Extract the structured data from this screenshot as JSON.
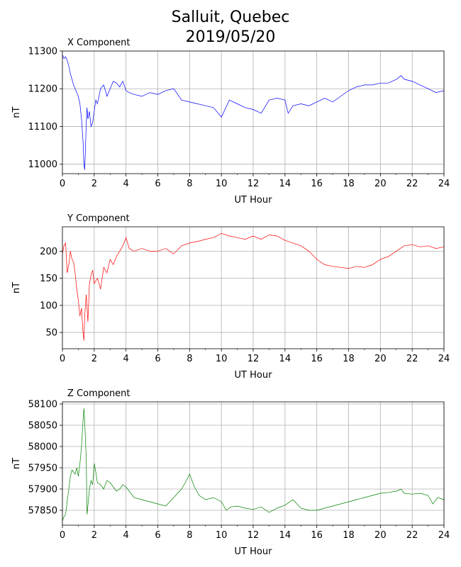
{
  "figure": {
    "title_line1": "Salluit, Quebec",
    "title_line2": "2019/05/20"
  },
  "chart_data": [
    {
      "type": "line",
      "title": "X Component",
      "xlabel": "UT Hour",
      "ylabel": "nT",
      "xlim": [
        0,
        24
      ],
      "ylim": [
        10975,
        11300
      ],
      "xticks": [
        0,
        2,
        4,
        6,
        8,
        10,
        12,
        14,
        16,
        18,
        20,
        22,
        24
      ],
      "yticks": [
        11000,
        11100,
        11200,
        11300
      ],
      "grid": true,
      "color": "#0000ff",
      "x": [
        0,
        0.1,
        0.2,
        0.3,
        0.4,
        0.5,
        0.6,
        0.7,
        0.8,
        0.9,
        1.0,
        1.1,
        1.2,
        1.3,
        1.35,
        1.4,
        1.45,
        1.5,
        1.55,
        1.6,
        1.7,
        1.8,
        1.9,
        2.0,
        2.1,
        2.2,
        2.4,
        2.6,
        2.8,
        3.0,
        3.2,
        3.4,
        3.6,
        3.8,
        4.0,
        4.2,
        4.5,
        5.0,
        5.5,
        6.0,
        6.5,
        7.0,
        7.5,
        8.0,
        8.5,
        9.0,
        9.5,
        10.0,
        10.5,
        11.0,
        11.5,
        12.0,
        12.5,
        13.0,
        13.5,
        14.0,
        14.2,
        14.5,
        15.0,
        15.5,
        16.0,
        16.5,
        17.0,
        17.5,
        18.0,
        18.5,
        19.0,
        19.5,
        20.0,
        20.5,
        21.0,
        21.3,
        21.5,
        22.0,
        22.5,
        23.0,
        23.5,
        24.0
      ],
      "values": [
        11290,
        11280,
        11285,
        11275,
        11260,
        11240,
        11225,
        11210,
        11200,
        11190,
        11180,
        11160,
        11120,
        11060,
        11000,
        10985,
        11040,
        11110,
        11150,
        11120,
        11140,
        11100,
        11110,
        11140,
        11170,
        11160,
        11200,
        11210,
        11180,
        11200,
        11220,
        11215,
        11205,
        11220,
        11195,
        11190,
        11185,
        11180,
        11190,
        11185,
        11195,
        11200,
        11170,
        11165,
        11160,
        11155,
        11150,
        11125,
        11170,
        11160,
        11150,
        11145,
        11135,
        11170,
        11175,
        11170,
        11135,
        11155,
        11160,
        11155,
        11165,
        11175,
        11165,
        11180,
        11195,
        11205,
        11210,
        11210,
        11215,
        11215,
        11225,
        11235,
        11225,
        11220,
        11210,
        11200,
        11190,
        11195
      ]
    },
    {
      "type": "line",
      "title": "Y Component",
      "xlabel": "UT Hour",
      "ylabel": "nT",
      "xlim": [
        0,
        24
      ],
      "ylim": [
        20,
        245
      ],
      "xticks": [
        0,
        2,
        4,
        6,
        8,
        10,
        12,
        14,
        16,
        18,
        20,
        22,
        24
      ],
      "yticks": [
        50,
        100,
        150,
        200
      ],
      "grid": true,
      "color": "#ff0000",
      "x": [
        0,
        0.1,
        0.2,
        0.3,
        0.4,
        0.5,
        0.6,
        0.7,
        0.8,
        0.9,
        1.0,
        1.1,
        1.2,
        1.3,
        1.35,
        1.4,
        1.5,
        1.6,
        1.7,
        1.8,
        1.9,
        2.0,
        2.2,
        2.4,
        2.6,
        2.8,
        3.0,
        3.2,
        3.4,
        3.6,
        3.8,
        4.0,
        4.2,
        4.5,
        5.0,
        5.5,
        6.0,
        6.5,
        7.0,
        7.5,
        8.0,
        8.5,
        9.0,
        9.5,
        10.0,
        10.5,
        11.0,
        11.5,
        12.0,
        12.5,
        13.0,
        13.5,
        14.0,
        14.5,
        15.0,
        15.5,
        16.0,
        16.5,
        17.0,
        17.5,
        18.0,
        18.5,
        19.0,
        19.5,
        20.0,
        20.5,
        21.0,
        21.5,
        22.0,
        22.5,
        23.0,
        23.5,
        24.0
      ],
      "values": [
        195,
        210,
        215,
        160,
        175,
        200,
        185,
        180,
        160,
        130,
        110,
        80,
        95,
        50,
        35,
        80,
        120,
        70,
        140,
        155,
        165,
        140,
        150,
        130,
        170,
        160,
        185,
        175,
        190,
        200,
        210,
        225,
        205,
        200,
        205,
        200,
        200,
        205,
        195,
        210,
        215,
        218,
        222,
        225,
        233,
        228,
        225,
        222,
        228,
        222,
        230,
        228,
        220,
        215,
        210,
        200,
        185,
        175,
        172,
        170,
        168,
        172,
        170,
        175,
        185,
        190,
        200,
        210,
        212,
        208,
        210,
        205,
        208
      ]
    },
    {
      "type": "line",
      "title": "Z Component",
      "xlabel": "UT Hour",
      "ylabel": "nT",
      "xlim": [
        0,
        24
      ],
      "ylim": [
        57815,
        58105
      ],
      "xticks": [
        0,
        2,
        4,
        6,
        8,
        10,
        12,
        14,
        16,
        18,
        20,
        22,
        24
      ],
      "yticks": [
        57850,
        57900,
        57950,
        58000,
        58050,
        58100
      ],
      "grid": true,
      "color": "#008000",
      "x": [
        0,
        0.1,
        0.2,
        0.3,
        0.4,
        0.5,
        0.6,
        0.7,
        0.8,
        0.9,
        1.0,
        1.1,
        1.2,
        1.3,
        1.35,
        1.4,
        1.5,
        1.55,
        1.6,
        1.7,
        1.8,
        1.9,
        2.0,
        2.1,
        2.2,
        2.4,
        2.6,
        2.8,
        3.0,
        3.2,
        3.4,
        3.6,
        3.8,
        4.0,
        4.2,
        4.5,
        5.0,
        5.5,
        6.0,
        6.5,
        7.0,
        7.5,
        7.8,
        8.0,
        8.3,
        8.6,
        9.0,
        9.5,
        10.0,
        10.3,
        10.6,
        11.0,
        11.5,
        12.0,
        12.5,
        13.0,
        13.5,
        14.0,
        14.5,
        15.0,
        15.5,
        16.0,
        16.5,
        17.0,
        17.5,
        18.0,
        18.5,
        19.0,
        19.5,
        20.0,
        20.5,
        21.0,
        21.3,
        21.5,
        22.0,
        22.5,
        23.0,
        23.3,
        23.6,
        24.0
      ],
      "values": [
        57825,
        57835,
        57840,
        57870,
        57900,
        57930,
        57945,
        57940,
        57935,
        57950,
        57930,
        57960,
        58000,
        58060,
        58090,
        58060,
        57970,
        57840,
        57860,
        57900,
        57920,
        57910,
        57960,
        57940,
        57915,
        57910,
        57900,
        57920,
        57915,
        57905,
        57895,
        57900,
        57910,
        57905,
        57895,
        57880,
        57875,
        57870,
        57865,
        57860,
        57880,
        57900,
        57920,
        57935,
        57905,
        57885,
        57875,
        57880,
        57870,
        57850,
        57858,
        57860,
        57855,
        57852,
        57858,
        57845,
        57855,
        57862,
        57875,
        57855,
        57850,
        57850,
        57855,
        57860,
        57865,
        57870,
        57875,
        57880,
        57885,
        57890,
        57892,
        57895,
        57900,
        57890,
        57888,
        57890,
        57885,
        57865,
        57880,
        57875
      ]
    }
  ]
}
